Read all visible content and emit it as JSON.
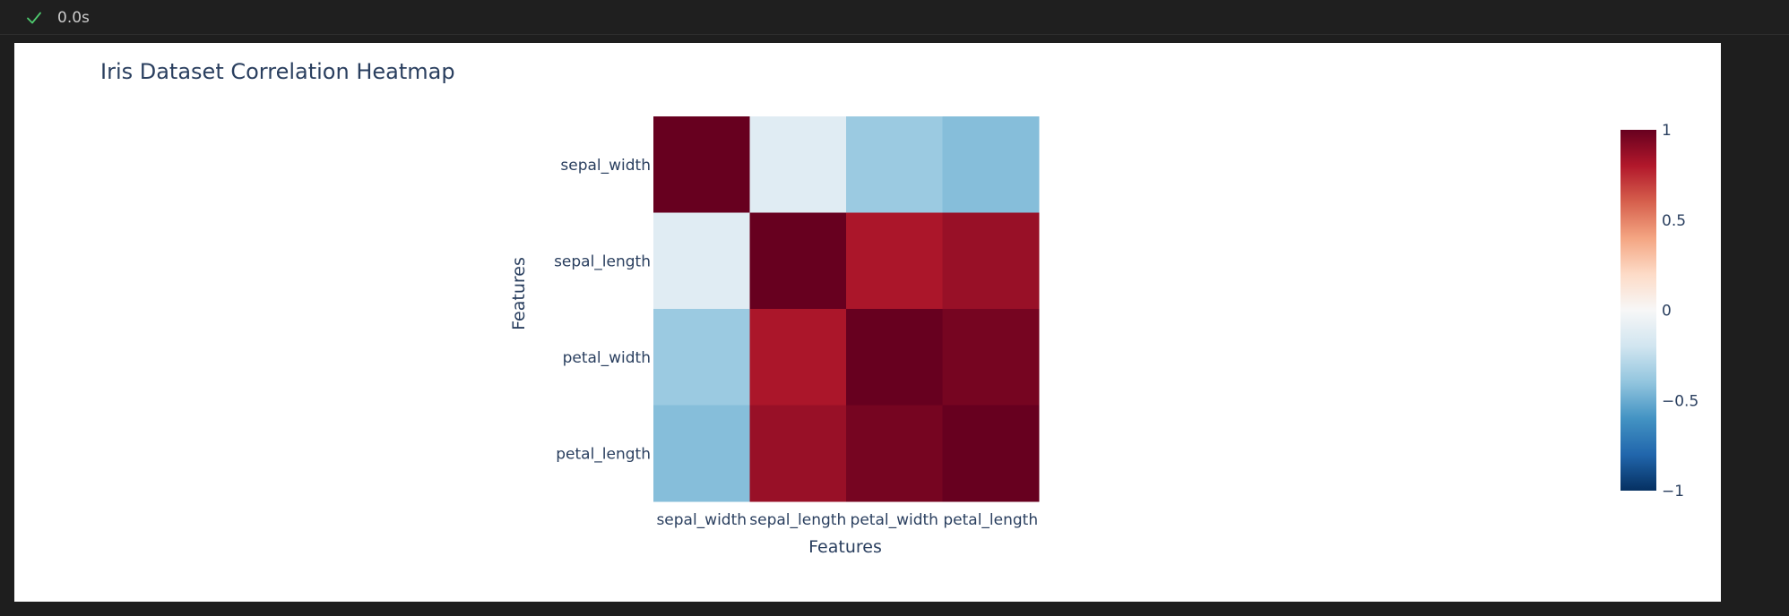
{
  "status": {
    "exec_time": "0.0s",
    "icon": "check-icon",
    "icon_color": "#4ec96e"
  },
  "chart_data": {
    "type": "heatmap",
    "title": "Iris Dataset Correlation Heatmap",
    "xlabel": "Features",
    "ylabel": "Features",
    "x": [
      "sepal_width",
      "sepal_length",
      "petal_width",
      "petal_length"
    ],
    "y": [
      "sepal_width",
      "sepal_length",
      "petal_width",
      "petal_length"
    ],
    "z": [
      [
        1.0,
        -0.12,
        -0.37,
        -0.43
      ],
      [
        -0.12,
        1.0,
        0.82,
        0.87
      ],
      [
        -0.37,
        0.82,
        1.0,
        0.96
      ],
      [
        -0.43,
        0.87,
        0.96,
        1.0
      ]
    ],
    "zlim": [
      -1,
      1
    ],
    "colorscale": "RdBu",
    "colorbar": {
      "ticks": [
        1,
        0.5,
        0,
        -0.5,
        -1
      ],
      "tick_labels": [
        "1",
        "0.5",
        "0",
        "−0.5",
        "−1"
      ],
      "placement": "right"
    },
    "grid": false
  }
}
